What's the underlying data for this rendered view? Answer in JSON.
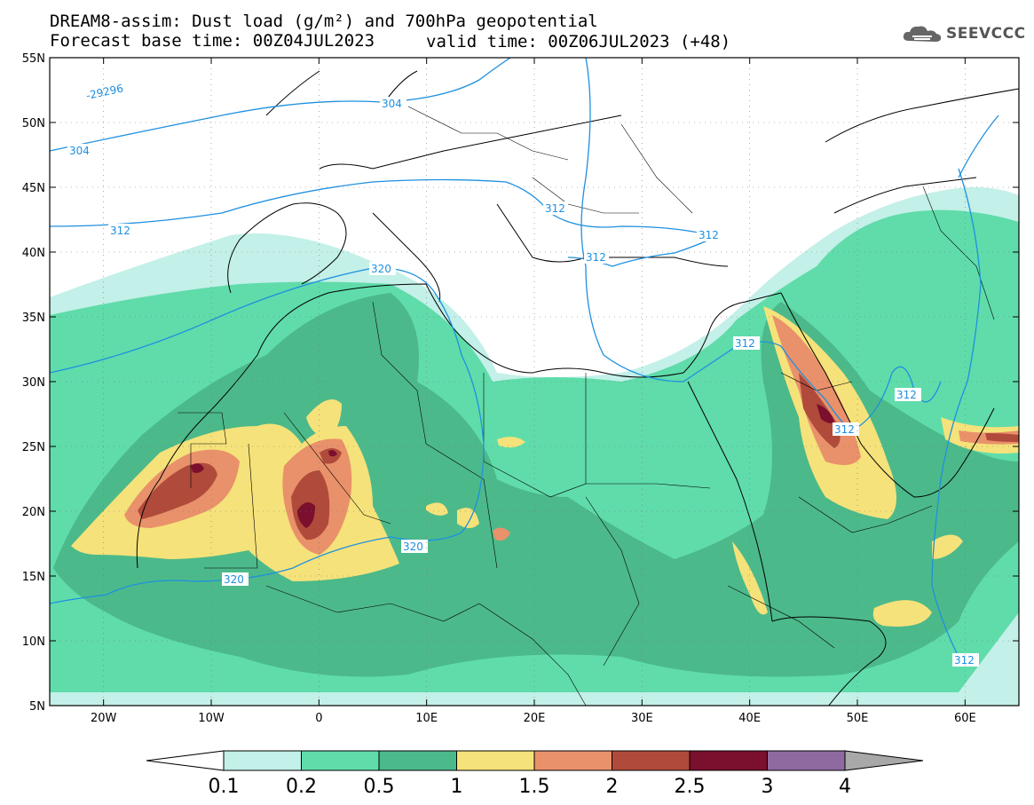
{
  "header": {
    "line1": "DREAM8-assim: Dust load (g/m²) and 700hPa geopotential",
    "line2a": "Forecast base time: 00Z04JUL2023",
    "line2b": "valid time: 00Z06JUL2023 (+48)"
  },
  "logo": {
    "text": "SEEVCCC",
    "icon": "cloud-icon"
  },
  "map": {
    "lon_range": [
      -25,
      65
    ],
    "lat_range": [
      5,
      55
    ],
    "lon_ticks": [
      {
        "lon": -20,
        "label": "20W"
      },
      {
        "lon": -10,
        "label": "10W"
      },
      {
        "lon": 0,
        "label": "0"
      },
      {
        "lon": 10,
        "label": "10E"
      },
      {
        "lon": 20,
        "label": "20E"
      },
      {
        "lon": 30,
        "label": "30E"
      },
      {
        "lon": 40,
        "label": "40E"
      },
      {
        "lon": 50,
        "label": "50E"
      },
      {
        "lon": 60,
        "label": "60E"
      }
    ],
    "lat_ticks": [
      {
        "lat": 55,
        "label": "55N"
      },
      {
        "lat": 50,
        "label": "50N"
      },
      {
        "lat": 45,
        "label": "45N"
      },
      {
        "lat": 40,
        "label": "40N"
      },
      {
        "lat": 35,
        "label": "35N"
      },
      {
        "lat": 30,
        "label": "30N"
      },
      {
        "lat": 25,
        "label": "25N"
      },
      {
        "lat": 20,
        "label": "20N"
      },
      {
        "lat": 15,
        "label": "15N"
      },
      {
        "lat": 10,
        "label": "10N"
      },
      {
        "lat": 5,
        "label": "5N"
      }
    ],
    "isolines": [
      {
        "label": "-29296",
        "value": "-29296"
      },
      {
        "label": "304",
        "value": "304"
      },
      {
        "label": "312",
        "value": "312"
      },
      {
        "label": "320",
        "value": "320"
      }
    ]
  },
  "colorbar": {
    "levels": [
      "0.1",
      "0.2",
      "0.5",
      "1",
      "1.5",
      "2",
      "2.5",
      "3",
      "4"
    ],
    "colors": [
      "#c3f0e8",
      "#5fdcaa",
      "#4cb98a",
      "#f5e27a",
      "#e9916a",
      "#b04a3a",
      "#7a0f2e",
      "#8e6aa0"
    ],
    "under_color": "#ffffff",
    "over_color": "#a8a8a8"
  }
}
